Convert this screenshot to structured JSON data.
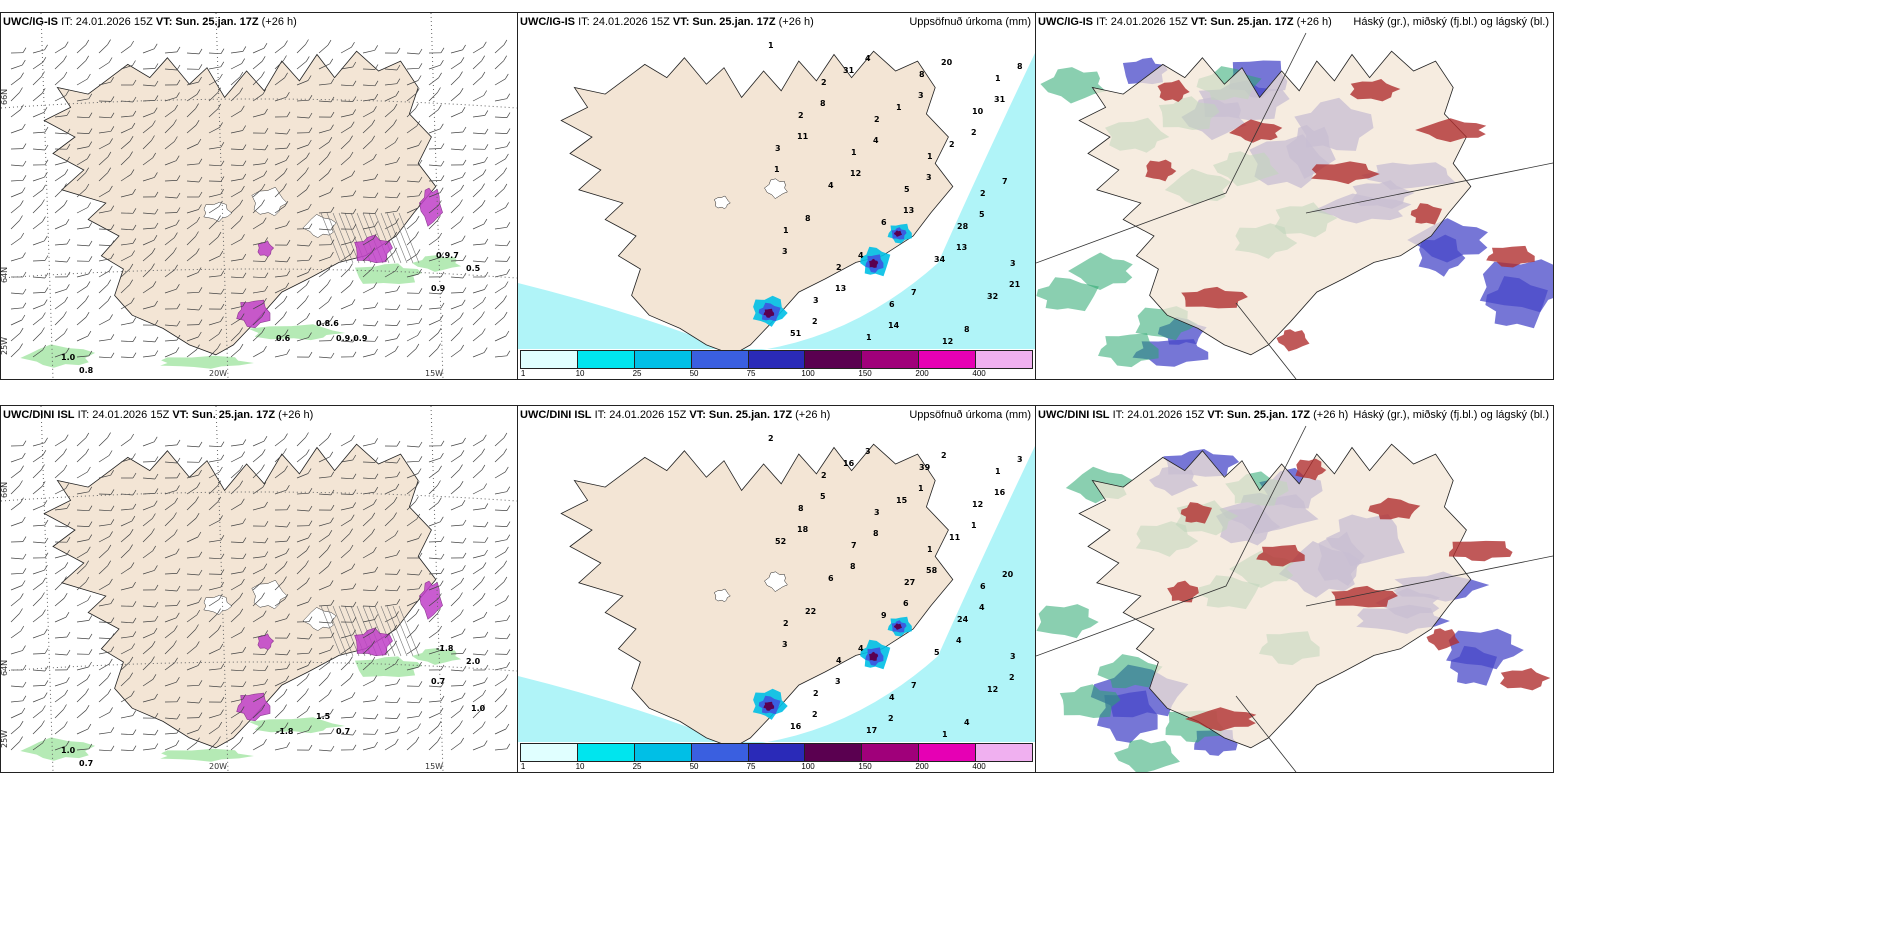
{
  "panels": [
    {
      "id": "p1",
      "header_model": "UWC/IG-IS",
      "header_it": "IT: 24.01.2026 15Z",
      "header_vt_label": "VT:",
      "header_vt": "Sun. 25.jan. 17Z",
      "header_lead": "(+26 h)",
      "right_title": ""
    },
    {
      "id": "p2",
      "header_model": "UWC/IG-IS",
      "header_it": "IT: 24.01.2026 15Z",
      "header_vt_label": "VT:",
      "header_vt": "Sun. 25.jan. 17Z",
      "header_lead": "(+26 h)",
      "right_title": "Uppsöfnuð úrkoma (mm)"
    },
    {
      "id": "p3",
      "header_model": "UWC/IG-IS",
      "header_it": "IT: 24.01.2026 15Z",
      "header_vt_label": "VT:",
      "header_vt": "Sun. 25.jan. 17Z",
      "header_lead": "(+26 h)",
      "right_title": "Háský (gr.), miðský (fj.bl.) og lágský (bl.)"
    },
    {
      "id": "p4",
      "header_model": "UWC/DINI ISL",
      "header_it": "IT: 24.01.2026 15Z",
      "header_vt_label": "VT:",
      "header_vt": "Sun. 25.jan. 17Z",
      "header_lead": "(+26 h)",
      "right_title": ""
    },
    {
      "id": "p5",
      "header_model": "UWC/DINI ISL",
      "header_it": "IT: 24.01.2026 15Z",
      "header_vt_label": "VT:",
      "header_vt": "Sun. 25.jan. 17Z",
      "header_lead": "(+26 h)",
      "right_title": "Uppsöfnuð úrkoma (mm)"
    },
    {
      "id": "p6",
      "header_model": "UWC/DINI ISL",
      "header_it": "IT: 24.01.2026 15Z",
      "header_vt_label": "VT:",
      "header_vt": "Sun. 25.jan. 17Z",
      "header_lead": "(+26 h)",
      "right_title": "Háský (gr.), miðský (fj.bl.) og lágský (bl.)"
    }
  ],
  "axis_labels": {
    "lat66": "66N",
    "lat64": "64N",
    "lon25": "25W",
    "lon20": "20W",
    "lon15": "15W"
  },
  "precip_colorbar": {
    "ticks": [
      "1",
      "10",
      "25",
      "50",
      "75",
      "100",
      "150",
      "200",
      "400"
    ],
    "colors": [
      "#e0ffff",
      "#00e5ee",
      "#00bfe6",
      "#3a5fe0",
      "#2a2ab8",
      "#5a0050",
      "#a0007a",
      "#e600b4",
      "#f0b0f0"
    ]
  },
  "wind_panel_labels": {
    "top": [
      "0.9.7",
      "0.5",
      "0.9",
      "1.0",
      "0.8",
      "0.6",
      "0.8.6",
      "0.9.0.9"
    ],
    "bottom": [
      "-1.8",
      "2.0",
      "0.7",
      "1.0",
      "0.7",
      "-1.8",
      "1.5",
      "0.7",
      "1.0"
    ]
  },
  "precip_labels_top": [
    "1",
    "2",
    "2",
    "1",
    "2",
    "1",
    "2",
    "6",
    "12",
    "1",
    "2",
    "1",
    "5",
    "28",
    "3",
    "3",
    "1",
    "8",
    "10",
    "3",
    "4",
    "6",
    "34",
    "32",
    "51",
    "31",
    "1",
    "2",
    "7",
    "8",
    "4",
    "7",
    "8",
    "8",
    "8",
    "4",
    "3",
    "5",
    "3",
    "13",
    "14",
    "20",
    "31",
    "11",
    "12",
    "13",
    "13",
    "21",
    "2",
    "4",
    "3",
    "2",
    "1"
  ],
  "precip_labels_bottom": [
    "2",
    "2",
    "3",
    "1",
    "6",
    "2",
    "4",
    "4",
    "1",
    "1",
    "8",
    "7",
    "27",
    "24",
    "3",
    "2",
    "17",
    "39",
    "12",
    "52",
    "6",
    "9",
    "5",
    "12",
    "16",
    "16",
    "15",
    "11",
    "20",
    "22",
    "4",
    "7",
    "4",
    "3",
    "5",
    "8",
    "58",
    "4",
    "3",
    "3",
    "2",
    "2",
    "16",
    "18",
    "8",
    "6",
    "4",
    "2",
    "2",
    "3",
    "1",
    "1"
  ],
  "colors": {
    "land": "#f3e5d5",
    "coast": "#222222",
    "precip_light": "#b0f4f8",
    "wind_green": "#a8e6a8",
    "magenta": "#c040c8",
    "cloud_high": "#2aa870",
    "cloud_mid": "#b03030",
    "cloud_low": "#4848c8"
  }
}
